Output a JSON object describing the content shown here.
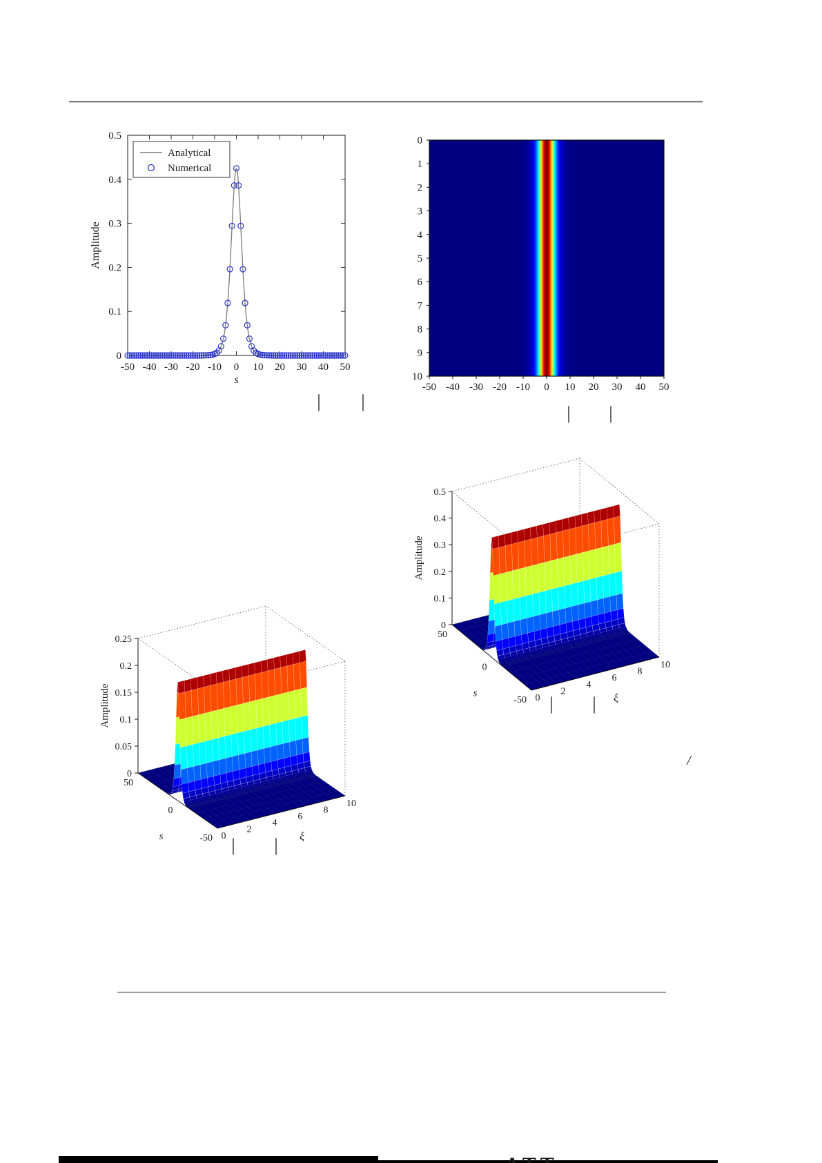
{
  "page": {
    "background": "#ffffff",
    "has_top_rule": true,
    "has_bottom_rule": true,
    "next_page_fragment": "ATT"
  },
  "chart_data": [
    {
      "id": "soliton-profile-2d",
      "type": "line",
      "title": "",
      "xlabel": "s",
      "ylabel": "Amplitude",
      "xlim": [
        -50,
        50
      ],
      "ylim": [
        0,
        0.5
      ],
      "xticks": [
        -50,
        -40,
        -30,
        -20,
        -10,
        0,
        10,
        20,
        30,
        40,
        50
      ],
      "yticks": [
        0,
        0.1,
        0.2,
        0.3,
        0.4,
        0.5
      ],
      "legend": {
        "position": "top-left",
        "entries": [
          {
            "label": "Analytical",
            "style": "line",
            "color": "#7a7a7a"
          },
          {
            "label": "Numerical",
            "style": "circle",
            "color": "#2a35c8"
          }
        ]
      },
      "profile": {
        "model": "A*sech(s/w)^2",
        "A": 0.425,
        "w": 3.2
      },
      "samples": {
        "s": [
          -10,
          -8,
          -6,
          -5,
          -4,
          -3,
          -2,
          -1,
          0,
          1,
          2,
          3,
          4,
          5,
          6,
          8,
          10
        ],
        "amplitude": [
          0.003,
          0.011,
          0.038,
          0.069,
          0.119,
          0.197,
          0.295,
          0.386,
          0.425,
          0.386,
          0.295,
          0.197,
          0.119,
          0.069,
          0.038,
          0.011,
          0.003
        ]
      },
      "numerical_marker_step": 1
    },
    {
      "id": "evolution-heatmap",
      "type": "heatmap",
      "xlim": [
        -50,
        50
      ],
      "xticks": [
        -50,
        -40,
        -30,
        -20,
        -10,
        0,
        10,
        20,
        30,
        40,
        50
      ],
      "yticks": [
        0,
        1,
        2,
        3,
        4,
        5,
        6,
        7,
        8,
        9,
        10
      ],
      "y_direction": "downward",
      "value_model": "A*sech(s/w)^2, constant along vertical axis",
      "A": 0.425,
      "w": 3.2,
      "colormap": "jet",
      "background_value": 0
    },
    {
      "id": "surface-right",
      "type": "surface",
      "zlabel": "Amplitude",
      "ylabel": "s",
      "xlabel": "ξ",
      "zlim": [
        0,
        0.5
      ],
      "zticks": [
        0,
        0.1,
        0.2,
        0.3,
        0.4,
        0.5
      ],
      "s_ticks": [
        50,
        0,
        -50
      ],
      "xi_ticks": [
        0,
        2,
        4,
        6,
        8,
        10
      ],
      "s_range": [
        -50,
        50
      ],
      "xi_range": [
        0,
        10
      ],
      "peak_amplitude": 0.45,
      "w": 3.2,
      "ridge": "constant along ξ at s = 0",
      "colormap": "jet"
    },
    {
      "id": "surface-left",
      "type": "surface",
      "zlabel": "Amplitude",
      "ylabel": "s",
      "xlabel": "ξ",
      "zlim": [
        0,
        0.25
      ],
      "zticks": [
        0,
        0.05,
        0.1,
        0.15,
        0.2,
        0.25
      ],
      "s_ticks": [
        50,
        0,
        -50
      ],
      "xi_ticks": [
        0,
        2,
        4,
        6,
        8,
        10
      ],
      "s_range": [
        -50,
        50
      ],
      "xi_range": [
        0,
        10
      ],
      "peak_amplitude": 0.22,
      "w": 3.2,
      "ridge": "constant along ξ at s = 0",
      "colormap": "jet"
    }
  ],
  "captions": {
    "fig1_fragments": [
      "|",
      "|"
    ],
    "fig2_fragments": [
      "|",
      "|"
    ],
    "fig3_fragments": [
      "|",
      "|"
    ],
    "fig4_fragments": [
      "|",
      "|"
    ],
    "stray_slash": "/"
  }
}
